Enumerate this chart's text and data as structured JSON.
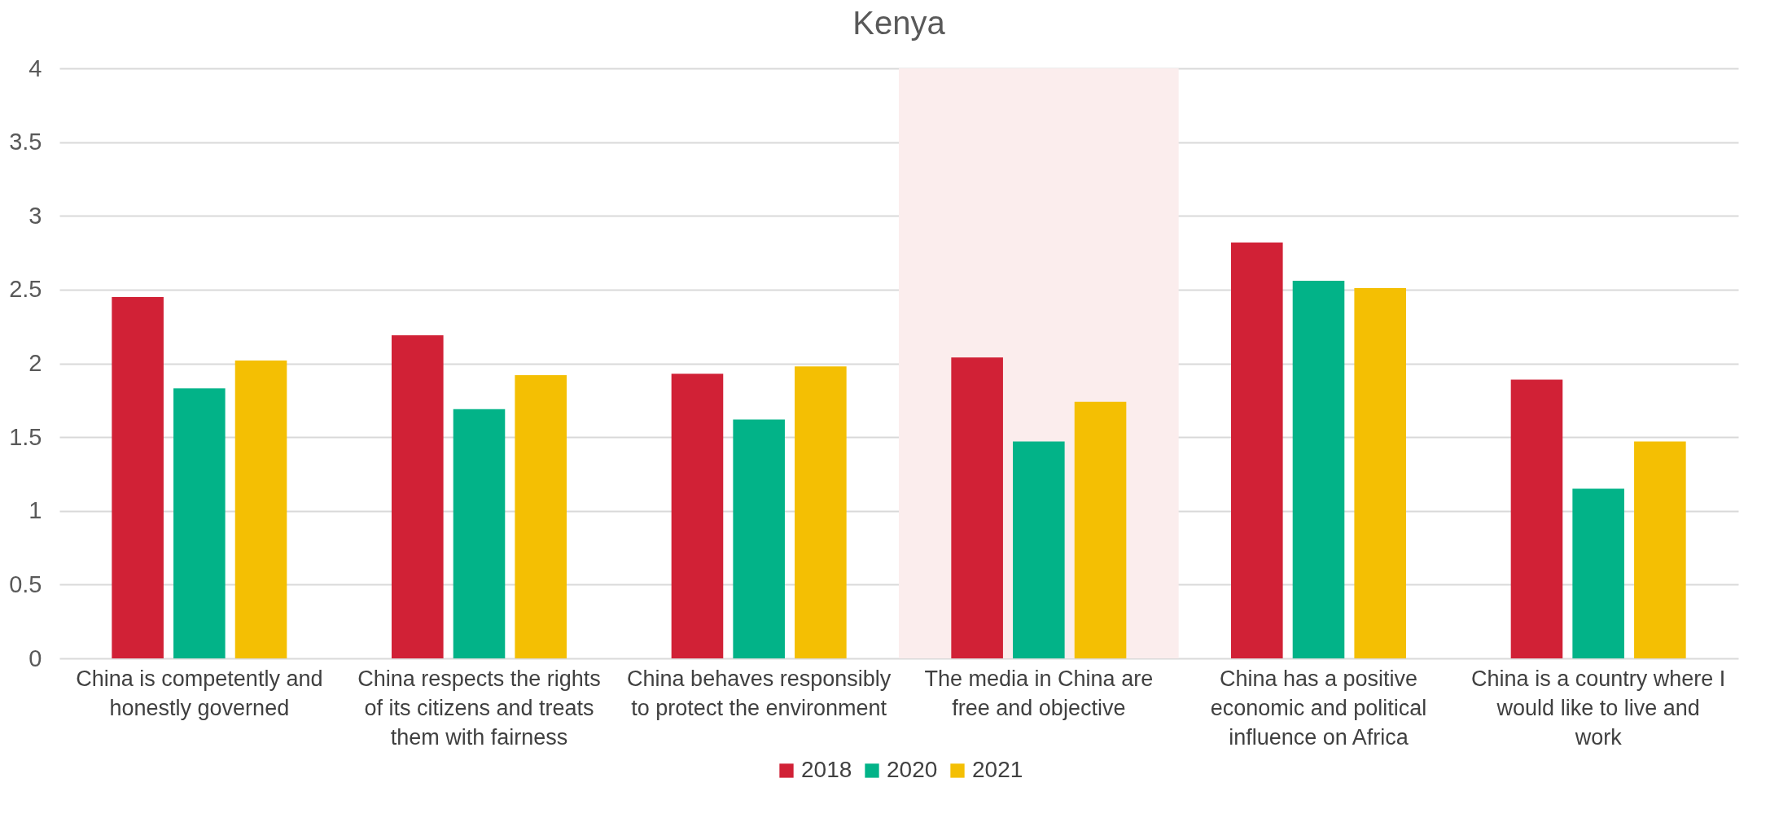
{
  "chart_data": {
    "type": "bar",
    "title": "Kenya",
    "categories": [
      "China is competently and honestly governed",
      "China respects the rights of its citizens and treats them with fairness",
      "China behaves responsibly to protect the environment",
      "The media in China are free and objective",
      "China has a positive economic  and political influence on Africa",
      "China is a country where I would like to live and work"
    ],
    "series": [
      {
        "name": "2018",
        "color": "#d12136",
        "values": [
          2.45,
          2.19,
          1.93,
          2.04,
          2.82,
          1.89
        ]
      },
      {
        "name": "2020",
        "color": "#02b388",
        "values": [
          1.83,
          1.69,
          1.62,
          1.47,
          2.56,
          1.15
        ]
      },
      {
        "name": "2021",
        "color": "#f4bf03",
        "values": [
          2.02,
          1.92,
          1.98,
          1.74,
          2.51,
          1.47
        ]
      }
    ],
    "bands": [
      {
        "axis": "x",
        "from": "The media in China are free and objective",
        "to": "The media in China are free and objective",
        "color": "#fbeded"
      }
    ],
    "ylim": [
      0,
      4
    ],
    "yticks": [
      0,
      0.5,
      1,
      1.5,
      2,
      2.5,
      3,
      3.5,
      4
    ],
    "grid": "y",
    "legend": "bottom"
  }
}
